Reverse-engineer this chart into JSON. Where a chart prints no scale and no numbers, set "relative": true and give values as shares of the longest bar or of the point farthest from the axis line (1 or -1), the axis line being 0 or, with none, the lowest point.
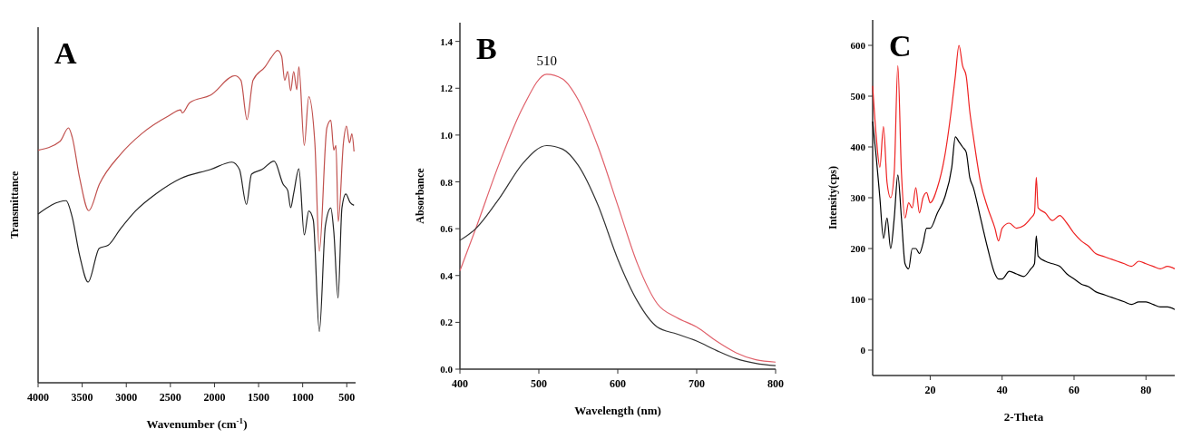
{
  "chart_data": [
    {
      "type": "line",
      "xlabel": "Wavenumber (cm$^{-1}$)",
      "ylabel": "Transmittance",
      "relative": true,
      "tick_labels": "x",
      "xlim": [
        4000,
        400
      ],
      "xticks": [
        4000,
        3500,
        3000,
        2500,
        2000,
        1500,
        1000,
        500
      ],
      "annotations": [
        "A"
      ],
      "series": [
        {
          "color": "#c0504d",
          "x": [
            4000,
            3750,
            3655,
            3614,
            3528,
            3426,
            3306,
            3067,
            2828,
            2520,
            2383,
            2366,
            2281,
            2042,
            1768,
            1700,
            1631,
            1563,
            1426,
            1358,
            1283,
            1238,
            1204,
            1170,
            1136,
            1102,
            1067,
            1043,
            982,
            931,
            862,
            811,
            726,
            681,
            647,
            623,
            596,
            538,
            504,
            469,
            442,
            418
          ],
          "values": [
            0.7,
            0.727,
            0.767,
            0.74,
            0.615,
            0.518,
            0.597,
            0.687,
            0.749,
            0.803,
            0.821,
            0.812,
            0.843,
            0.866,
            0.924,
            0.91,
            0.792,
            0.91,
            0.951,
            0.978,
            1.0,
            0.982,
            0.91,
            0.937,
            0.879,
            0.937,
            0.882,
            0.951,
            0.714,
            0.861,
            0.722,
            0.396,
            0.767,
            0.79,
            0.7,
            0.714,
            0.485,
            0.722,
            0.772,
            0.722,
            0.749,
            0.696
          ]
        },
        {
          "color": "#222222",
          "x": [
            4000,
            3682,
            3614,
            3528,
            3433,
            3306,
            3204,
            3067,
            2896,
            2657,
            2383,
            2042,
            1802,
            1717,
            1638,
            1580,
            1460,
            1324,
            1221,
            1170,
            1136,
            1102,
            1043,
            982,
            931,
            880,
            811,
            743,
            681,
            647,
            599,
            555,
            511,
            463,
            418
          ],
          "values": [
            0.508,
            0.548,
            0.499,
            0.382,
            0.303,
            0.405,
            0.414,
            0.463,
            0.517,
            0.57,
            0.615,
            0.642,
            0.664,
            0.642,
            0.537,
            0.628,
            0.642,
            0.667,
            0.597,
            0.579,
            0.527,
            0.57,
            0.644,
            0.445,
            0.517,
            0.49,
            0.154,
            0.472,
            0.526,
            0.454,
            0.255,
            0.526,
            0.568,
            0.543,
            0.534
          ]
        }
      ]
    },
    {
      "type": "line",
      "xlabel": "Wavelength (nm)",
      "ylabel": "Absorbance",
      "xlim": [
        400,
        800
      ],
      "xticks": [
        400,
        500,
        600,
        700,
        800
      ],
      "ylim": [
        0,
        1.48
      ],
      "yticks": [
        {
          "value": 0,
          "label": "0.0"
        },
        0.2,
        0.4,
        0.6,
        0.8,
        {
          "value": 1,
          "label": "1.0"
        },
        1.2,
        1.4
      ],
      "annotations": [
        "B",
        {
          "text": "510",
          "x": 510,
          "y": 1.26
        }
      ],
      "series": [
        {
          "color": "#e0606a",
          "x": [
            400,
            420,
            450,
            480,
            510,
            530,
            550,
            575,
            600,
            625,
            650,
            675,
            700,
            725,
            750,
            775,
            800
          ],
          "values": [
            0.42,
            0.6,
            0.88,
            1.12,
            1.26,
            1.24,
            1.15,
            0.95,
            0.7,
            0.45,
            0.28,
            0.22,
            0.18,
            0.12,
            0.07,
            0.04,
            0.03
          ]
        },
        {
          "color": "#333333",
          "x": [
            400,
            420,
            450,
            480,
            510,
            530,
            550,
            575,
            600,
            625,
            650,
            675,
            700,
            725,
            750,
            775,
            800
          ],
          "values": [
            0.55,
            0.6,
            0.73,
            0.88,
            0.955,
            0.94,
            0.87,
            0.7,
            0.47,
            0.29,
            0.18,
            0.15,
            0.12,
            0.08,
            0.045,
            0.025,
            0.015
          ]
        }
      ]
    },
    {
      "type": "line",
      "xlabel": "2-Theta",
      "ylabel": "Intensity(cps)",
      "xlim": [
        4,
        88
      ],
      "xticks": [
        20,
        40,
        60,
        80
      ],
      "ylim": [
        -50,
        650
      ],
      "yticks": [
        0,
        100,
        200,
        300,
        400,
        500,
        600
      ],
      "annotations": [
        "C"
      ],
      "series": [
        {
          "color": "#ee2222",
          "x": [
            4,
            5,
            6,
            7,
            8,
            9,
            10,
            11,
            12,
            13,
            14,
            15,
            16,
            17,
            18,
            19,
            20,
            22,
            24,
            26,
            27,
            28,
            29,
            30,
            31,
            32,
            34,
            36,
            38,
            39,
            40,
            42,
            44,
            46,
            48,
            49,
            49.5,
            50,
            52,
            54,
            56,
            58,
            60,
            62,
            64,
            66,
            68,
            70,
            72,
            74,
            76,
            78,
            80,
            82,
            84,
            86,
            88
          ],
          "values": [
            520,
            420,
            360,
            440,
            330,
            300,
            350,
            560,
            350,
            260,
            290,
            280,
            320,
            270,
            300,
            310,
            290,
            320,
            380,
            480,
            540,
            600,
            560,
            540,
            470,
            420,
            330,
            280,
            240,
            215,
            240,
            250,
            240,
            245,
            260,
            270,
            340,
            280,
            270,
            255,
            265,
            250,
            230,
            215,
            205,
            190,
            185,
            180,
            175,
            170,
            165,
            175,
            170,
            165,
            160,
            165,
            160
          ]
        },
        {
          "color": "#000000",
          "x": [
            4,
            5,
            6,
            7,
            8,
            9,
            10,
            11,
            12,
            13,
            14,
            15,
            16,
            17,
            18,
            19,
            20,
            22,
            24,
            26,
            27,
            28,
            29,
            30,
            31,
            32,
            34,
            36,
            38,
            39,
            40,
            42,
            44,
            46,
            48,
            49,
            49.5,
            50,
            52,
            54,
            56,
            58,
            60,
            62,
            64,
            66,
            68,
            70,
            72,
            74,
            76,
            78,
            80,
            82,
            84,
            86,
            88
          ],
          "values": [
            450,
            380,
            300,
            220,
            260,
            200,
            260,
            345,
            260,
            170,
            160,
            200,
            200,
            190,
            210,
            240,
            240,
            270,
            300,
            360,
            420,
            410,
            400,
            390,
            340,
            320,
            260,
            200,
            150,
            140,
            140,
            155,
            150,
            145,
            160,
            170,
            225,
            185,
            175,
            170,
            165,
            150,
            140,
            130,
            125,
            115,
            110,
            105,
            100,
            95,
            90,
            95,
            95,
            90,
            85,
            85,
            80
          ]
        }
      ]
    }
  ]
}
